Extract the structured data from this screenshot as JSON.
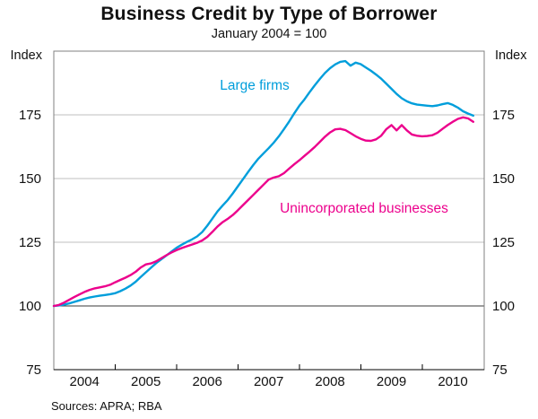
{
  "title": "Business Credit by Type of Borrower",
  "subtitle": "January 2004 = 100",
  "source_note": "Sources: APRA; RBA",
  "chart_data": {
    "type": "line",
    "title": "Business Credit by Type of Borrower",
    "subtitle": "January 2004 = 100",
    "ylabel": "Index",
    "ylabel_right": "Index",
    "ylim": [
      75,
      200
    ],
    "y_ticks": [
      75,
      100,
      125,
      150,
      175
    ],
    "baseline_value": 100,
    "grid": "horizontal",
    "x_unit": "month",
    "x_start": "2004-01",
    "x_end": "2010-11",
    "n_points": 83,
    "x_ticklabels": [
      "2004",
      "2005",
      "2006",
      "2007",
      "2008",
      "2009",
      "2010"
    ],
    "legend_position": "inline-annotations",
    "series": [
      {
        "name": "Large firms",
        "color": "#009EDB",
        "values": [
          100,
          100.2,
          100.5,
          101,
          101.6,
          102.2,
          102.8,
          103.3,
          103.7,
          104,
          104.3,
          104.6,
          105,
          105.8,
          106.8,
          108,
          109.5,
          111.4,
          113.2,
          115,
          116.8,
          118.3,
          119.8,
          121.3,
          122.8,
          124,
          125.1,
          126.1,
          127.3,
          129,
          131.5,
          134.3,
          137.1,
          139.4,
          141.6,
          144.2,
          147,
          149.8,
          152.6,
          155.3,
          157.8,
          159.9,
          161.9,
          164.1,
          166.6,
          169.4,
          172.4,
          175.6,
          178.6,
          181.1,
          183.9,
          186.6,
          189.1,
          191.4,
          193.3,
          194.8,
          195.8,
          196.1,
          194.3,
          195.5,
          194.9,
          193.6,
          192.3,
          190.8,
          189.2,
          187.2,
          185.2,
          183.2,
          181.5,
          180.3,
          179.5,
          179,
          178.8,
          178.6,
          178.4,
          178.7,
          179.2,
          179.6,
          178.9,
          177.8,
          176.4,
          175.5,
          174.7
        ]
      },
      {
        "name": "Unincorporated businesses",
        "color": "#EC008C",
        "values": [
          100,
          100.4,
          101.3,
          102.4,
          103.5,
          104.5,
          105.5,
          106.3,
          106.9,
          107.3,
          107.7,
          108.3,
          109.3,
          110.2,
          111.1,
          112.1,
          113.4,
          115.1,
          116.3,
          116.7,
          117.5,
          118.7,
          119.9,
          121,
          121.9,
          122.7,
          123.4,
          124.1,
          124.8,
          125.7,
          127.1,
          129.1,
          131.2,
          132.9,
          134.2,
          135.7,
          137.6,
          139.6,
          141.6,
          143.6,
          145.6,
          147.6,
          149.6,
          150.4,
          150.9,
          152.1,
          153.9,
          155.6,
          157.2,
          158.9,
          160.6,
          162.4,
          164.4,
          166.4,
          168.1,
          169.3,
          169.5,
          169,
          167.8,
          166.6,
          165.6,
          164.9,
          164.8,
          165.4,
          166.8,
          169.4,
          171,
          168.9,
          171,
          168.9,
          167.3,
          166.8,
          166.6,
          166.7,
          167,
          168,
          169.5,
          171,
          172.3,
          173.4,
          174,
          173.6,
          172.3
        ]
      }
    ],
    "annotation_colors": {
      "grid": "#bfbfbf",
      "baseline": "#3a3a3a",
      "frame": "#808080",
      "axis": "#000000"
    }
  }
}
